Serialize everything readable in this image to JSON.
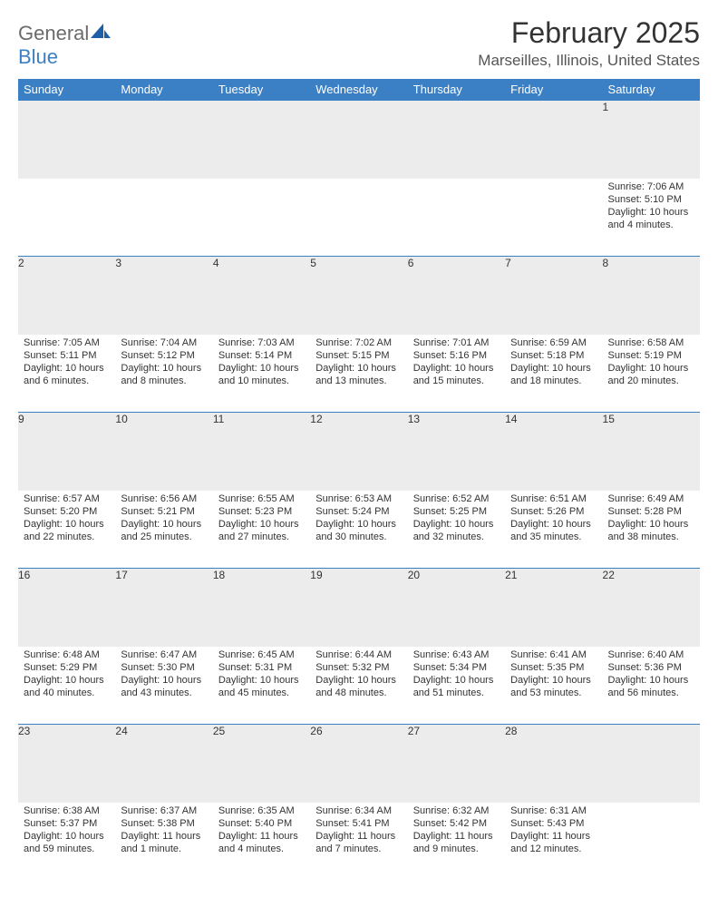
{
  "brand": {
    "top": "General",
    "bottom": "Blue"
  },
  "title": "February 2025",
  "location": "Marseilles, Illinois, United States",
  "colors": {
    "header_bg": "#3b7fc4",
    "header_text": "#ffffff",
    "daynum_bg": "#ececec",
    "border": "#3b7fc4",
    "logo_gray": "#6b6b6b",
    "logo_blue": "#3b7fc4"
  },
  "weekdays": [
    "Sunday",
    "Monday",
    "Tuesday",
    "Wednesday",
    "Thursday",
    "Friday",
    "Saturday"
  ],
  "weeks": [
    [
      null,
      null,
      null,
      null,
      null,
      null,
      {
        "n": "1",
        "sr": "Sunrise: 7:06 AM",
        "ss": "Sunset: 5:10 PM",
        "dl": "Daylight: 10 hours and 4 minutes."
      }
    ],
    [
      {
        "n": "2",
        "sr": "Sunrise: 7:05 AM",
        "ss": "Sunset: 5:11 PM",
        "dl": "Daylight: 10 hours and 6 minutes."
      },
      {
        "n": "3",
        "sr": "Sunrise: 7:04 AM",
        "ss": "Sunset: 5:12 PM",
        "dl": "Daylight: 10 hours and 8 minutes."
      },
      {
        "n": "4",
        "sr": "Sunrise: 7:03 AM",
        "ss": "Sunset: 5:14 PM",
        "dl": "Daylight: 10 hours and 10 minutes."
      },
      {
        "n": "5",
        "sr": "Sunrise: 7:02 AM",
        "ss": "Sunset: 5:15 PM",
        "dl": "Daylight: 10 hours and 13 minutes."
      },
      {
        "n": "6",
        "sr": "Sunrise: 7:01 AM",
        "ss": "Sunset: 5:16 PM",
        "dl": "Daylight: 10 hours and 15 minutes."
      },
      {
        "n": "7",
        "sr": "Sunrise: 6:59 AM",
        "ss": "Sunset: 5:18 PM",
        "dl": "Daylight: 10 hours and 18 minutes."
      },
      {
        "n": "8",
        "sr": "Sunrise: 6:58 AM",
        "ss": "Sunset: 5:19 PM",
        "dl": "Daylight: 10 hours and 20 minutes."
      }
    ],
    [
      {
        "n": "9",
        "sr": "Sunrise: 6:57 AM",
        "ss": "Sunset: 5:20 PM",
        "dl": "Daylight: 10 hours and 22 minutes."
      },
      {
        "n": "10",
        "sr": "Sunrise: 6:56 AM",
        "ss": "Sunset: 5:21 PM",
        "dl": "Daylight: 10 hours and 25 minutes."
      },
      {
        "n": "11",
        "sr": "Sunrise: 6:55 AM",
        "ss": "Sunset: 5:23 PM",
        "dl": "Daylight: 10 hours and 27 minutes."
      },
      {
        "n": "12",
        "sr": "Sunrise: 6:53 AM",
        "ss": "Sunset: 5:24 PM",
        "dl": "Daylight: 10 hours and 30 minutes."
      },
      {
        "n": "13",
        "sr": "Sunrise: 6:52 AM",
        "ss": "Sunset: 5:25 PM",
        "dl": "Daylight: 10 hours and 32 minutes."
      },
      {
        "n": "14",
        "sr": "Sunrise: 6:51 AM",
        "ss": "Sunset: 5:26 PM",
        "dl": "Daylight: 10 hours and 35 minutes."
      },
      {
        "n": "15",
        "sr": "Sunrise: 6:49 AM",
        "ss": "Sunset: 5:28 PM",
        "dl": "Daylight: 10 hours and 38 minutes."
      }
    ],
    [
      {
        "n": "16",
        "sr": "Sunrise: 6:48 AM",
        "ss": "Sunset: 5:29 PM",
        "dl": "Daylight: 10 hours and 40 minutes."
      },
      {
        "n": "17",
        "sr": "Sunrise: 6:47 AM",
        "ss": "Sunset: 5:30 PM",
        "dl": "Daylight: 10 hours and 43 minutes."
      },
      {
        "n": "18",
        "sr": "Sunrise: 6:45 AM",
        "ss": "Sunset: 5:31 PM",
        "dl": "Daylight: 10 hours and 45 minutes."
      },
      {
        "n": "19",
        "sr": "Sunrise: 6:44 AM",
        "ss": "Sunset: 5:32 PM",
        "dl": "Daylight: 10 hours and 48 minutes."
      },
      {
        "n": "20",
        "sr": "Sunrise: 6:43 AM",
        "ss": "Sunset: 5:34 PM",
        "dl": "Daylight: 10 hours and 51 minutes."
      },
      {
        "n": "21",
        "sr": "Sunrise: 6:41 AM",
        "ss": "Sunset: 5:35 PM",
        "dl": "Daylight: 10 hours and 53 minutes."
      },
      {
        "n": "22",
        "sr": "Sunrise: 6:40 AM",
        "ss": "Sunset: 5:36 PM",
        "dl": "Daylight: 10 hours and 56 minutes."
      }
    ],
    [
      {
        "n": "23",
        "sr": "Sunrise: 6:38 AM",
        "ss": "Sunset: 5:37 PM",
        "dl": "Daylight: 10 hours and 59 minutes."
      },
      {
        "n": "24",
        "sr": "Sunrise: 6:37 AM",
        "ss": "Sunset: 5:38 PM",
        "dl": "Daylight: 11 hours and 1 minute."
      },
      {
        "n": "25",
        "sr": "Sunrise: 6:35 AM",
        "ss": "Sunset: 5:40 PM",
        "dl": "Daylight: 11 hours and 4 minutes."
      },
      {
        "n": "26",
        "sr": "Sunrise: 6:34 AM",
        "ss": "Sunset: 5:41 PM",
        "dl": "Daylight: 11 hours and 7 minutes."
      },
      {
        "n": "27",
        "sr": "Sunrise: 6:32 AM",
        "ss": "Sunset: 5:42 PM",
        "dl": "Daylight: 11 hours and 9 minutes."
      },
      {
        "n": "28",
        "sr": "Sunrise: 6:31 AM",
        "ss": "Sunset: 5:43 PM",
        "dl": "Daylight: 11 hours and 12 minutes."
      },
      null
    ]
  ]
}
